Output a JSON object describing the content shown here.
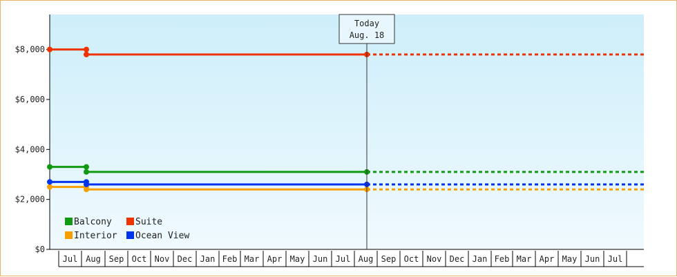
{
  "chart_data": {
    "type": "line",
    "title": "",
    "xlabel": "",
    "ylabel": "",
    "ylim": [
      0,
      9400
    ],
    "y_ticks": [
      0,
      2000,
      4000,
      6000,
      8000
    ],
    "y_tick_labels": [
      "$0",
      "$2,000",
      "$4,000",
      "$6,000",
      "$8,000"
    ],
    "x_month_labels": [
      "Jul",
      "Aug",
      "Sep",
      "Oct",
      "Nov",
      "Dec",
      "Jan",
      "Feb",
      "Mar",
      "Apr",
      "May",
      "Jun",
      "Jul",
      "Aug",
      "Sep",
      "Oct",
      "Nov",
      "Dec",
      "Jan",
      "Feb",
      "Mar",
      "Apr",
      "May",
      "Jun",
      "Jul"
    ],
    "today_marker": {
      "line1": "Today",
      "line2": "Aug. 18"
    },
    "background": "light-blue gradient",
    "legend_position": "bottom-left",
    "grid": false,
    "series": [
      {
        "name": "Balcony",
        "color": "#119911",
        "points": [
          {
            "x": "Jun",
            "y": 3300
          },
          {
            "x": "Aug",
            "y": 3300
          },
          {
            "x": "Aug",
            "y": 3100
          },
          {
            "x": "Aug. 18",
            "y": 3100
          }
        ],
        "projected_to": "Jul",
        "projected_y": 3100
      },
      {
        "name": "Suite",
        "color": "#ee3300",
        "points": [
          {
            "x": "Jun",
            "y": 8000
          },
          {
            "x": "Aug",
            "y": 8000
          },
          {
            "x": "Aug",
            "y": 7800
          },
          {
            "x": "Aug. 18",
            "y": 7800
          }
        ],
        "projected_to": "Jul",
        "projected_y": 7800
      },
      {
        "name": "Interior",
        "color": "#f5a000",
        "points": [
          {
            "x": "Jun",
            "y": 2500
          },
          {
            "x": "Aug",
            "y": 2500
          },
          {
            "x": "Aug",
            "y": 2400
          },
          {
            "x": "Aug. 18",
            "y": 2400
          }
        ],
        "projected_to": "Jul",
        "projected_y": 2400
      },
      {
        "name": "Ocean View",
        "color": "#0033ee",
        "points": [
          {
            "x": "Jun",
            "y": 2700
          },
          {
            "x": "Aug",
            "y": 2700
          },
          {
            "x": "Aug",
            "y": 2600
          },
          {
            "x": "Aug. 18",
            "y": 2600
          }
        ],
        "projected_to": "Jul",
        "projected_y": 2600
      }
    ]
  }
}
